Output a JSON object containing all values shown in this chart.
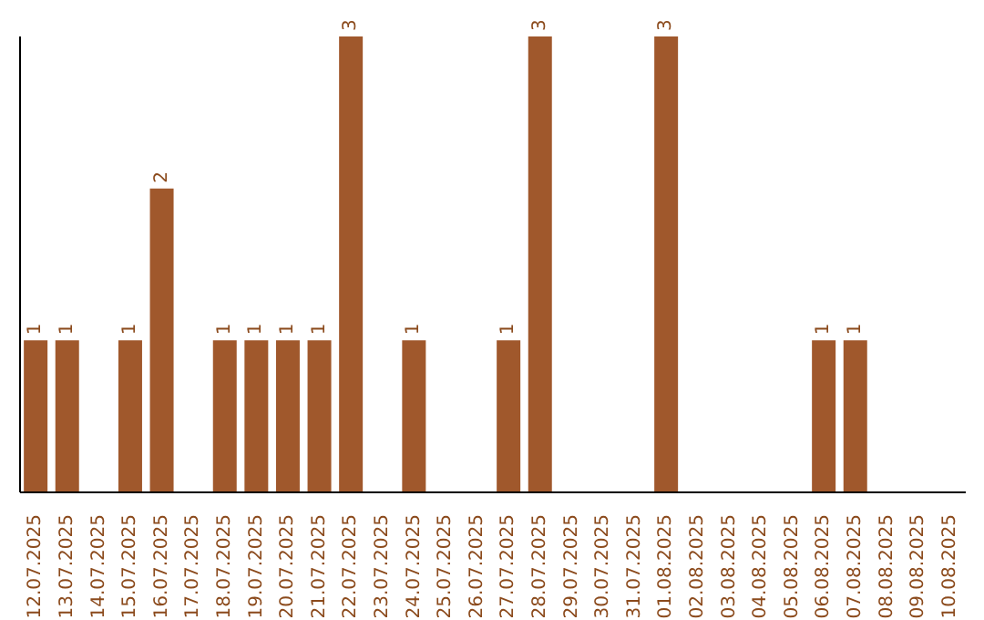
{
  "chart_data": {
    "type": "bar",
    "categories": [
      "12.07.2025",
      "13.07.2025",
      "14.07.2025",
      "15.07.2025",
      "16.07.2025",
      "17.07.2025",
      "18.07.2025",
      "19.07.2025",
      "20.07.2025",
      "21.07.2025",
      "22.07.2025",
      "23.07.2025",
      "24.07.2025",
      "25.07.2025",
      "26.07.2025",
      "27.07.2025",
      "28.07.2025",
      "29.07.2025",
      "30.07.2025",
      "31.07.2025",
      "01.08.2025",
      "02.08.2025",
      "03.08.2025",
      "04.08.2025",
      "05.08.2025",
      "06.08.2025",
      "07.08.2025",
      "08.08.2025",
      "09.08.2025",
      "10.08.2025"
    ],
    "values": [
      1,
      1,
      0,
      1,
      2,
      0,
      1,
      1,
      1,
      1,
      3,
      0,
      1,
      0,
      0,
      1,
      3,
      0,
      0,
      0,
      3,
      0,
      0,
      0,
      0,
      1,
      1,
      0,
      0,
      0
    ],
    "value_labels": [
      "1",
      "1",
      null,
      "1",
      "2",
      null,
      "1",
      "1",
      "1",
      "1",
      "3",
      null,
      "1",
      null,
      null,
      "1",
      "3",
      null,
      null,
      null,
      "3",
      null,
      null,
      null,
      null,
      "1",
      "1",
      null,
      null,
      null
    ],
    "color": "#a0582c",
    "ylim": [
      0,
      3
    ],
    "tick_labels": "x"
  }
}
